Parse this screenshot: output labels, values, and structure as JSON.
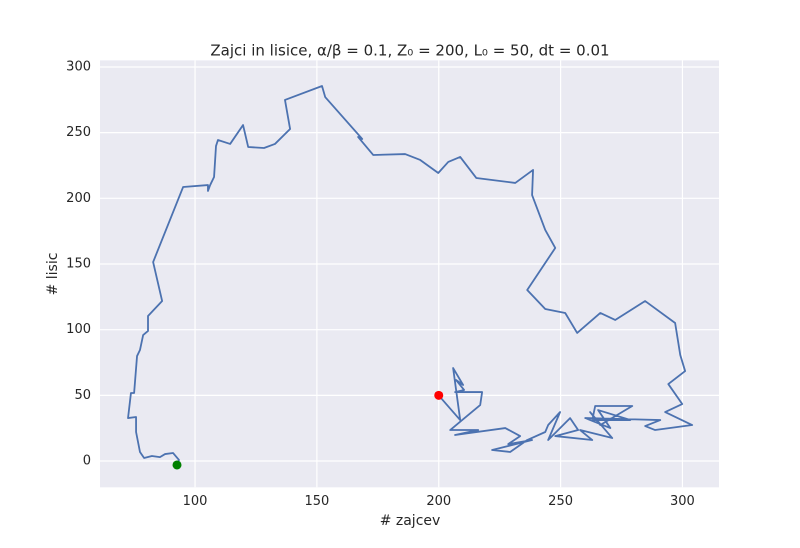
{
  "chart_data": {
    "type": "line",
    "title": "Zajci in lisice, α/β = 0.1, Z₀ = 200, L₀ = 50, dt = 0.01",
    "x_label": "# zajcev",
    "y_label": "# lisic",
    "xlim": [
      61,
      315
    ],
    "ylim": [
      -20,
      305
    ],
    "xticks": [
      100,
      150,
      200,
      250,
      300
    ],
    "yticks": [
      0,
      50,
      100,
      150,
      200,
      250,
      300
    ],
    "grid": true,
    "series": [
      {
        "type": "line",
        "color": "#4c72b0",
        "x": [
          199.8,
          208.8,
          205.9,
          210.0,
          207.1,
          210.4,
          206.7,
          217.8,
          217.0,
          209.6,
          204.7,
          216.2,
          206.7,
          227.3,
          233.4,
          228.5,
          238.3,
          221.9,
          229.3,
          236.3,
          243.7,
          244.9,
          249.8,
          244.9,
          253.9,
          257.2,
          247.8,
          263.0,
          258.0,
          271.2,
          262.1,
          266.3,
          279.4,
          264.2,
          263.0,
          278.6,
          265.4,
          270.4,
          260.1,
          290.9,
          284.7,
          288.8,
          304.0,
          292.9,
          299.9,
          294.2,
          301.1,
          299.1,
          297.0,
          284.7,
          272.4,
          266.3,
          256.8,
          251.9,
          243.7,
          236.3,
          247.8,
          243.7,
          238.3,
          238.7,
          231.4,
          215.4,
          208.8,
          203.9,
          199.8,
          192.4,
          186.2,
          173.1,
          166.9,
          168.6,
          153.4,
          152.1,
          136.9,
          139.0,
          132.8,
          128.3,
          121.8,
          119.7,
          114.4,
          109.4,
          108.6,
          107.8,
          106.2,
          105.3,
          105.3,
          95.1,
          82.8,
          86.5,
          80.7,
          80.7,
          78.7,
          77.4,
          76.2,
          75.0,
          73.7,
          72.5,
          75.8,
          75.8,
          77.4,
          79.1,
          82.3,
          85.6,
          87.7,
          91.0,
          93.4,
          92.6
        ],
        "values": [
          50.3,
          31.2,
          70.8,
          57.9,
          61.7,
          54.1,
          52.5,
          52.5,
          42.6,
          31.2,
          23.6,
          23.6,
          19.8,
          25.1,
          19.0,
          12.9,
          16.0,
          8.4,
          6.9,
          16.0,
          22.1,
          27.4,
          37.3,
          16.0,
          32.7,
          23.6,
          19.0,
          16.0,
          23.6,
          17.5,
          37.3,
          27.4,
          41.9,
          41.9,
          31.2,
          31.2,
          38.8,
          25.1,
          32.7,
          31.2,
          26.6,
          23.6,
          27.4,
          37.3,
          43.4,
          58.6,
          68.5,
          80.7,
          105.1,
          121.8,
          107.4,
          112.7,
          97.5,
          112.7,
          115.7,
          130.2,
          162.2,
          175.9,
          202.5,
          221.6,
          211.7,
          215.5,
          231.5,
          227.7,
          219.3,
          229.2,
          233.7,
          233.0,
          246.7,
          245.2,
          277.1,
          285.5,
          274.9,
          252.8,
          241.4,
          238.3,
          239.1,
          255.8,
          241.4,
          244.4,
          239.8,
          216.2,
          210.1,
          205.6,
          210.1,
          208.6,
          151.5,
          121.8,
          110.4,
          99.0,
          95.9,
          84.5,
          79.9,
          51.8,
          51.8,
          32.7,
          33.5,
          22.1,
          6.9,
          2.3,
          3.8,
          3.0,
          5.3,
          6.1,
          0.8,
          -3.0
        ]
      },
      {
        "type": "scatter",
        "color": "#ff0000",
        "x": [
          200
        ],
        "values": [
          50
        ]
      },
      {
        "type": "scatter",
        "color": "#008000",
        "x": [
          92.6
        ],
        "values": [
          -3.0
        ]
      }
    ]
  }
}
